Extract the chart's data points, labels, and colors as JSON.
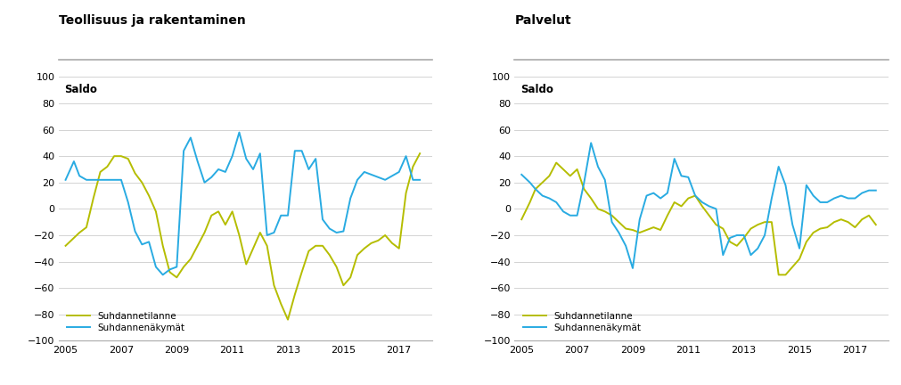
{
  "title_left": "Teollisuus ja rakentaminen",
  "title_right": "Palvelut",
  "ylabel_text": "Saldo",
  "legend_label1": "Suhdannetilanne",
  "legend_label2": "Suhdannenäkymät",
  "color_tilanne": "#b5bd00",
  "color_nakymät": "#29abe2",
  "ylim": [
    -100,
    100
  ],
  "yticks": [
    -100,
    -80,
    -60,
    -40,
    -20,
    0,
    20,
    40,
    60,
    80,
    100
  ],
  "xticks": [
    2005,
    2007,
    2009,
    2011,
    2013,
    2015,
    2017
  ],
  "left_tilanne_x": [
    2005.0,
    2005.3,
    2005.5,
    2005.75,
    2006.0,
    2006.25,
    2006.5,
    2006.75,
    2007.0,
    2007.25,
    2007.5,
    2007.75,
    2008.0,
    2008.25,
    2008.5,
    2008.75,
    2009.0,
    2009.25,
    2009.5,
    2009.75,
    2010.0,
    2010.25,
    2010.5,
    2010.75,
    2011.0,
    2011.25,
    2011.5,
    2011.75,
    2012.0,
    2012.25,
    2012.5,
    2012.75,
    2013.0,
    2013.25,
    2013.5,
    2013.75,
    2014.0,
    2014.25,
    2014.5,
    2014.75,
    2015.0,
    2015.25,
    2015.5,
    2015.75,
    2016.0,
    2016.25,
    2016.5,
    2016.75,
    2017.0,
    2017.25,
    2017.5,
    2017.75
  ],
  "left_tilanne_y": [
    -28,
    -22,
    -18,
    -14,
    8,
    28,
    32,
    40,
    40,
    38,
    27,
    20,
    10,
    -2,
    -28,
    -48,
    -52,
    -44,
    -38,
    -28,
    -18,
    -5,
    -2,
    -12,
    -2,
    -20,
    -42,
    -30,
    -18,
    -28,
    -58,
    -72,
    -84,
    -65,
    -48,
    -32,
    -28,
    -28,
    -35,
    -44,
    -58,
    -52,
    -35,
    -30,
    -26,
    -24,
    -20,
    -26,
    -30,
    12,
    32,
    42
  ],
  "left_nakymät_x": [
    2005.0,
    2005.3,
    2005.5,
    2005.75,
    2006.0,
    2006.25,
    2006.5,
    2006.75,
    2007.0,
    2007.25,
    2007.5,
    2007.75,
    2008.0,
    2008.25,
    2008.5,
    2008.75,
    2009.0,
    2009.25,
    2009.5,
    2009.75,
    2010.0,
    2010.25,
    2010.5,
    2010.75,
    2011.0,
    2011.25,
    2011.5,
    2011.75,
    2012.0,
    2012.25,
    2012.5,
    2012.75,
    2013.0,
    2013.25,
    2013.5,
    2013.75,
    2014.0,
    2014.25,
    2014.5,
    2014.75,
    2015.0,
    2015.25,
    2015.5,
    2015.75,
    2016.0,
    2016.25,
    2016.5,
    2016.75,
    2017.0,
    2017.25,
    2017.5,
    2017.75
  ],
  "left_nakymät_y": [
    22,
    36,
    25,
    22,
    22,
    22,
    22,
    22,
    22,
    5,
    -17,
    -27,
    -25,
    -44,
    -50,
    -46,
    -44,
    44,
    54,
    36,
    20,
    24,
    30,
    28,
    40,
    58,
    38,
    30,
    42,
    -20,
    -18,
    -5,
    -5,
    44,
    44,
    30,
    38,
    -8,
    -15,
    -18,
    -17,
    8,
    22,
    28,
    26,
    24,
    22,
    25,
    28,
    40,
    22,
    22
  ],
  "right_tilanne_x": [
    2005.0,
    2005.3,
    2005.5,
    2005.75,
    2006.0,
    2006.25,
    2006.5,
    2006.75,
    2007.0,
    2007.25,
    2007.5,
    2007.75,
    2008.0,
    2008.25,
    2008.5,
    2008.75,
    2009.0,
    2009.25,
    2009.5,
    2009.75,
    2010.0,
    2010.25,
    2010.5,
    2010.75,
    2011.0,
    2011.25,
    2011.5,
    2011.75,
    2012.0,
    2012.25,
    2012.5,
    2012.75,
    2013.0,
    2013.25,
    2013.5,
    2013.75,
    2014.0,
    2014.25,
    2014.5,
    2014.75,
    2015.0,
    2015.25,
    2015.5,
    2015.75,
    2016.0,
    2016.25,
    2016.5,
    2016.75,
    2017.0,
    2017.25,
    2017.5,
    2017.75
  ],
  "right_tilanne_y": [
    -8,
    5,
    15,
    20,
    25,
    35,
    30,
    25,
    30,
    15,
    8,
    0,
    -2,
    -5,
    -10,
    -15,
    -16,
    -18,
    -16,
    -14,
    -16,
    -5,
    5,
    2,
    8,
    10,
    2,
    -5,
    -12,
    -15,
    -25,
    -28,
    -22,
    -15,
    -12,
    -10,
    -10,
    -50,
    -50,
    -44,
    -38,
    -25,
    -18,
    -15,
    -14,
    -10,
    -8,
    -10,
    -14,
    -8,
    -5,
    -12
  ],
  "right_nakymät_x": [
    2005.0,
    2005.3,
    2005.5,
    2005.75,
    2006.0,
    2006.25,
    2006.5,
    2006.75,
    2007.0,
    2007.25,
    2007.5,
    2007.75,
    2008.0,
    2008.25,
    2008.5,
    2008.75,
    2009.0,
    2009.25,
    2009.5,
    2009.75,
    2010.0,
    2010.25,
    2010.5,
    2010.75,
    2011.0,
    2011.25,
    2011.5,
    2011.75,
    2012.0,
    2012.25,
    2012.5,
    2012.75,
    2013.0,
    2013.25,
    2013.5,
    2013.75,
    2014.0,
    2014.25,
    2014.5,
    2014.75,
    2015.0,
    2015.25,
    2015.5,
    2015.75,
    2016.0,
    2016.25,
    2016.5,
    2016.75,
    2017.0,
    2017.25,
    2017.5,
    2017.75
  ],
  "right_nakymät_y": [
    26,
    20,
    15,
    10,
    8,
    5,
    -2,
    -5,
    -5,
    20,
    50,
    32,
    22,
    -10,
    -18,
    -28,
    -45,
    -8,
    10,
    12,
    8,
    12,
    38,
    25,
    24,
    10,
    5,
    2,
    0,
    -35,
    -22,
    -20,
    -20,
    -35,
    -30,
    -20,
    8,
    32,
    18,
    -12,
    -30,
    18,
    10,
    5,
    5,
    8,
    10,
    8,
    8,
    12,
    14,
    14
  ],
  "bg_color": "#ffffff",
  "grid_color": "#cccccc",
  "spine_color": "#aaaaaa",
  "title_sep_color": "#aaaaaa"
}
